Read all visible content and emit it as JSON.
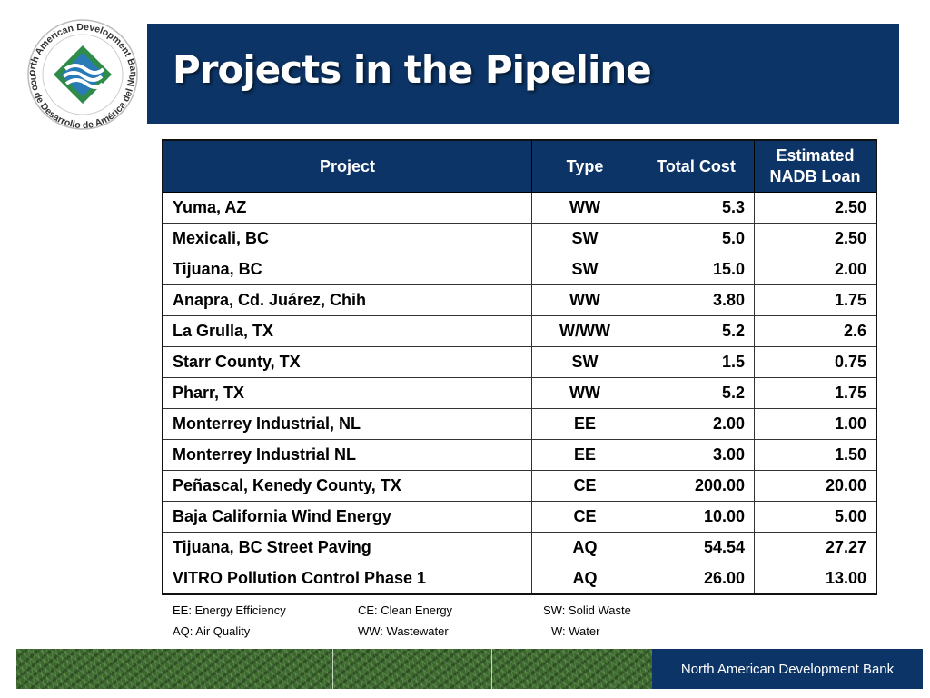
{
  "logo": {
    "text_top": "North American Development Bank",
    "text_bottom": "Banco de Desarrollo de América del Norte",
    "colors": {
      "green": "#2e8b4a",
      "blue": "#2a7ab8",
      "navy": "#0c3466"
    }
  },
  "title": "Projects in the Pipeline",
  "table": {
    "headers": {
      "project": "Project",
      "type": "Type",
      "total_cost": "Total Cost",
      "loan_line1": "Estimated",
      "loan_line2": "NADB Loan"
    },
    "rows": [
      {
        "project": "Yuma, AZ",
        "type": "WW",
        "total_cost": "5.3",
        "loan": "2.50"
      },
      {
        "project": "Mexicali, BC",
        "type": "SW",
        "total_cost": "5.0",
        "loan": "2.50"
      },
      {
        "project": "Tijuana, BC",
        "type": "SW",
        "total_cost": "15.0",
        "loan": "2.00"
      },
      {
        "project": "Anapra, Cd. Juárez, Chih",
        "type": "WW",
        "total_cost": "3.80",
        "loan": "1.75"
      },
      {
        "project": "La Grulla, TX",
        "type": "W/WW",
        "total_cost": "5.2",
        "loan": "2.6"
      },
      {
        "project": "Starr County, TX",
        "type": "SW",
        "total_cost": "1.5",
        "loan": "0.75"
      },
      {
        "project": "Pharr, TX",
        "type": "WW",
        "total_cost": "5.2",
        "loan": "1.75"
      },
      {
        "project": "Monterrey Industrial, NL",
        "type": "EE",
        "total_cost": "2.00",
        "loan": "1.00"
      },
      {
        "project": "Monterrey Industrial NL",
        "type": "EE",
        "total_cost": "3.00",
        "loan": "1.50"
      },
      {
        "project": "Peñascal, Kenedy County, TX",
        "type": "CE",
        "total_cost": "200.00",
        "loan": "20.00"
      },
      {
        "project": "Baja California Wind Energy",
        "type": "CE",
        "total_cost": "10.00",
        "loan": "5.00"
      },
      {
        "project": "Tijuana, BC Street Paving",
        "type": "AQ",
        "total_cost": "54.54",
        "loan": "27.27"
      },
      {
        "project": "VITRO Pollution Control Phase 1",
        "type": "AQ",
        "total_cost": "26.00",
        "loan": "13.00"
      }
    ]
  },
  "legend": {
    "row1": [
      "EE: Energy Efficiency",
      "CE: Clean Energy",
      "SW: Solid Waste"
    ],
    "row2": [
      "AQ: Air Quality",
      "WW: Wastewater",
      "W: Water"
    ]
  },
  "footer": {
    "bank_name": "North American Development Bank"
  }
}
